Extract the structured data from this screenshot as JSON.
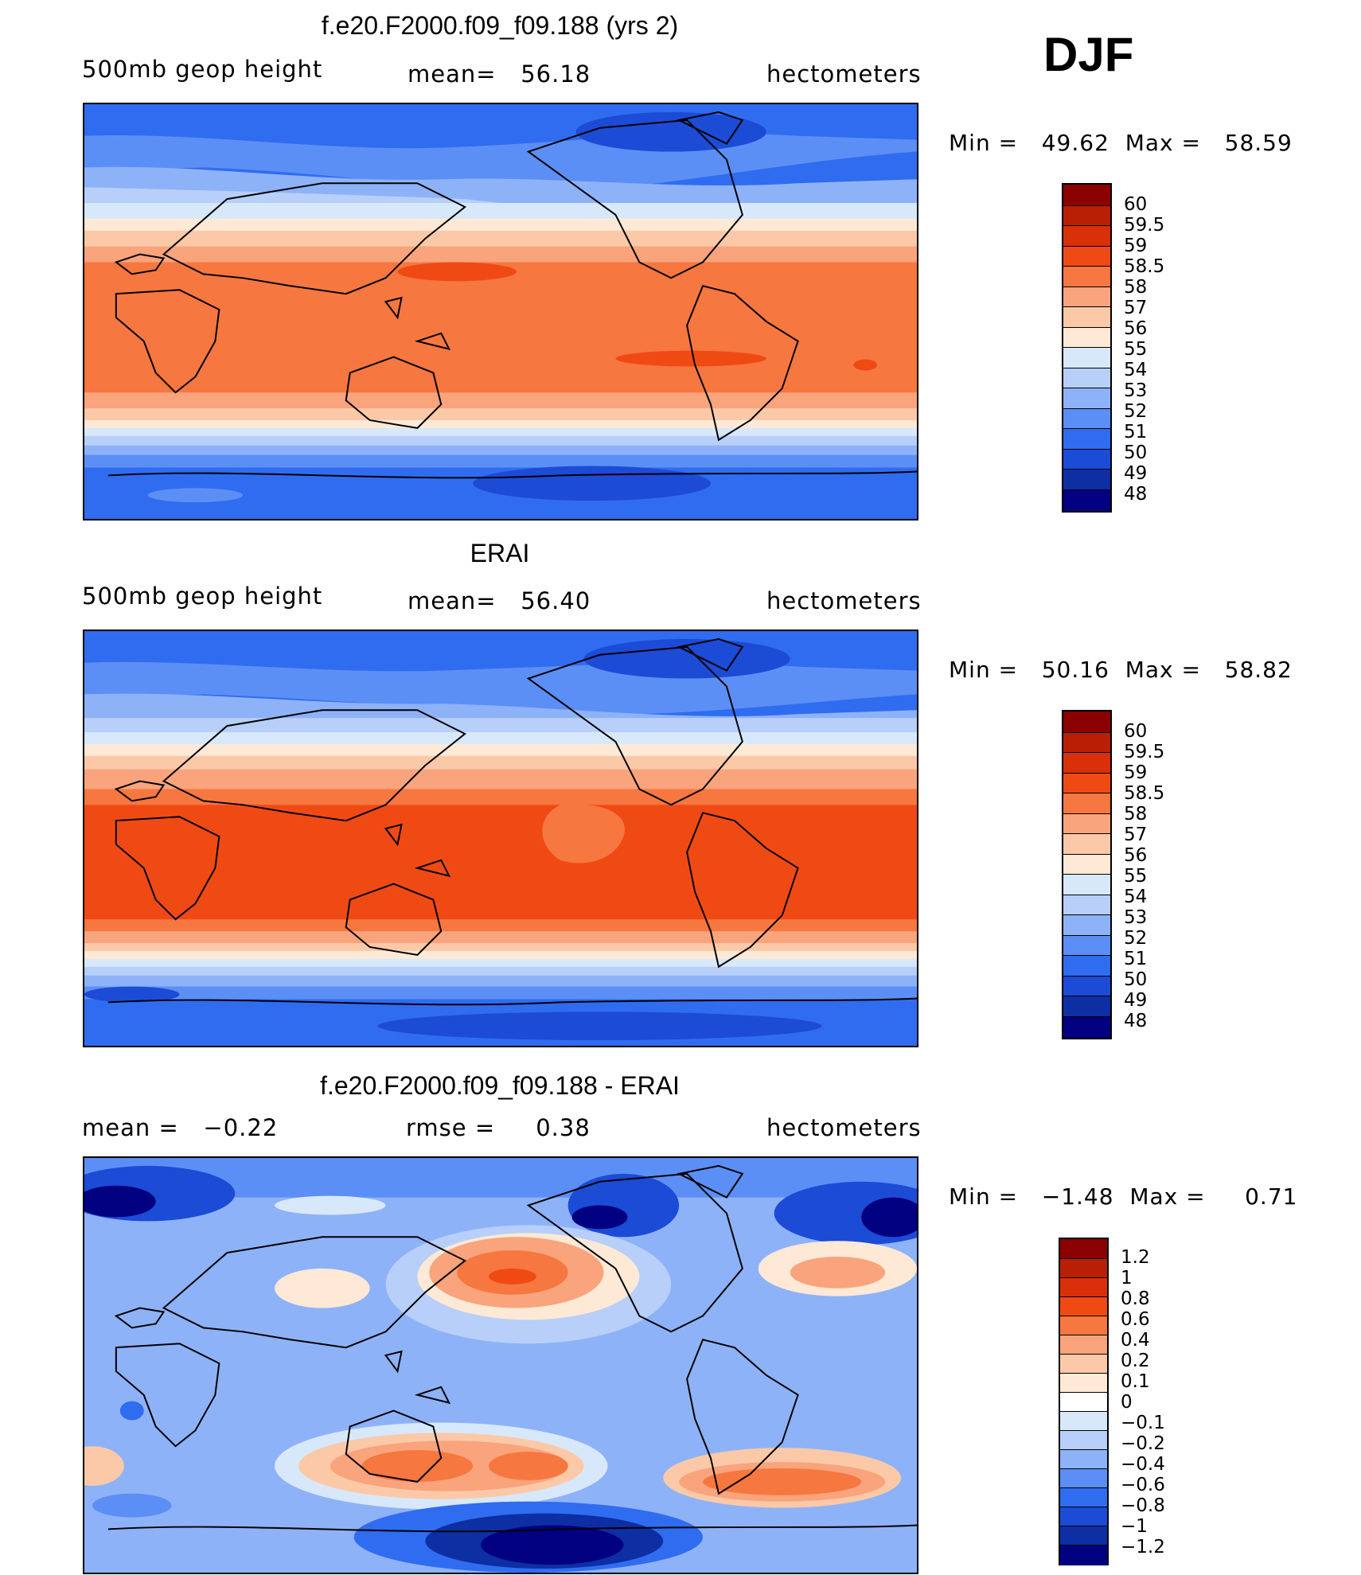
{
  "season": "DJF",
  "panels": [
    {
      "title": "f.e20.F2000.f09_f09.188 (yrs 2)",
      "left": "500mb geop height",
      "center": "mean=   56.18",
      "right": "hectometers",
      "minmax": "Min =   49.62  Max =   58.59",
      "colorbar": [
        "60",
        "59.5",
        "59",
        "58.5",
        "58",
        "57",
        "56",
        "55",
        "54",
        "53",
        "52",
        "51",
        "50",
        "49",
        "48"
      ]
    },
    {
      "title": "ERAI",
      "left": "500mb geop height",
      "center": "mean=   56.40",
      "right": "hectometers",
      "minmax": "Min =   50.16  Max =   58.82",
      "colorbar": [
        "60",
        "59.5",
        "59",
        "58.5",
        "58",
        "57",
        "56",
        "55",
        "54",
        "53",
        "52",
        "51",
        "50",
        "49",
        "48"
      ]
    },
    {
      "title": "f.e20.F2000.f09_f09.188 - ERAI",
      "left": "mean =   −0.22",
      "center": "rmse =     0.38",
      "right": "hectometers",
      "minmax": "Min =   −1.48  Max =     0.71",
      "colorbar": [
        "1.2",
        "1",
        "0.8",
        "0.6",
        "0.4",
        "0.2",
        "0.1",
        "0",
        "−0.1",
        "−0.2",
        "−0.4",
        "−0.6",
        "−0.8",
        "−1",
        "−1.2"
      ]
    }
  ],
  "colors": {
    "abs_scale": [
      "#8b0000",
      "#b81f05",
      "#d9300a",
      "#f04a14",
      "#f6773f",
      "#f9a47c",
      "#fcc9a8",
      "#fde9d6",
      "#d8e8fb",
      "#b7cff9",
      "#8eb2f8",
      "#5c8ff5",
      "#2f6cf0",
      "#1c4bd6",
      "#0d2fa3",
      "#000080"
    ],
    "diff_scale": [
      "#8b0000",
      "#b81f05",
      "#d9300a",
      "#f04a14",
      "#f6773f",
      "#f9a47c",
      "#fcc9a8",
      "#fde9d6",
      "#ffffff",
      "#d8e8fb",
      "#b7cff9",
      "#8eb2f8",
      "#5c8ff5",
      "#2f6cf0",
      "#1c4bd6",
      "#0d2fa3",
      "#000080"
    ]
  }
}
